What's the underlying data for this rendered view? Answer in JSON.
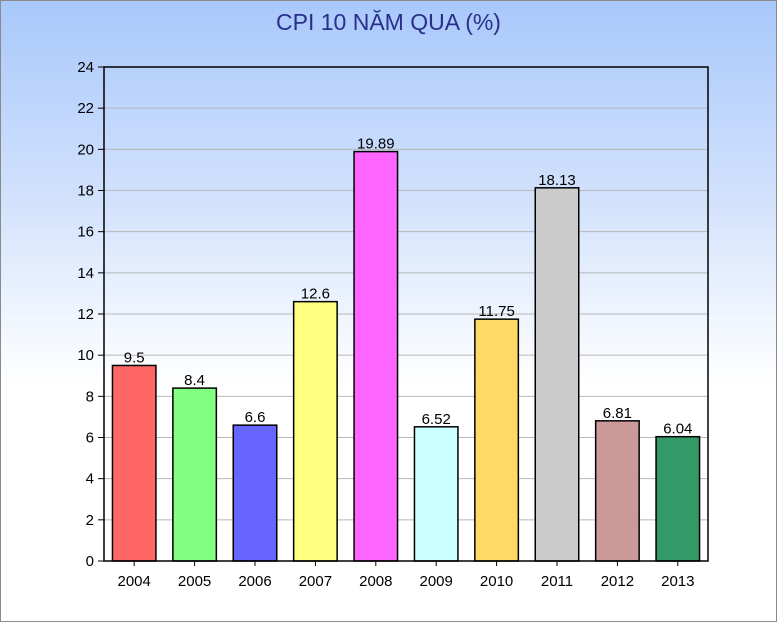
{
  "chart_data": {
    "type": "bar",
    "title": "CPI 10 NĂM QUA (%)",
    "xlabel": "",
    "ylabel": "",
    "categories": [
      "2004",
      "2005",
      "2006",
      "2007",
      "2008",
      "2009",
      "2010",
      "2011",
      "2012",
      "2013"
    ],
    "values": [
      9.5,
      8.4,
      6.6,
      12.6,
      19.89,
      6.52,
      11.75,
      18.13,
      6.81,
      6.04
    ],
    "value_labels": [
      "9.5",
      "8.4",
      "6.6",
      "12.6",
      "19.89",
      "6.52",
      "11.75",
      "18.13",
      "6.81",
      "6.04"
    ],
    "colors": [
      "#ff6666",
      "#80ff80",
      "#6666ff",
      "#ffff80",
      "#ff66ff",
      "#ccffff",
      "#ffd966",
      "#cccccc",
      "#cc9999",
      "#339966"
    ],
    "ylim": [
      0,
      24
    ],
    "yticks": [
      "0",
      "2",
      "4",
      "6",
      "8",
      "10",
      "12",
      "14",
      "16",
      "18",
      "20",
      "22",
      "24"
    ],
    "grid": true,
    "legend": "none"
  }
}
